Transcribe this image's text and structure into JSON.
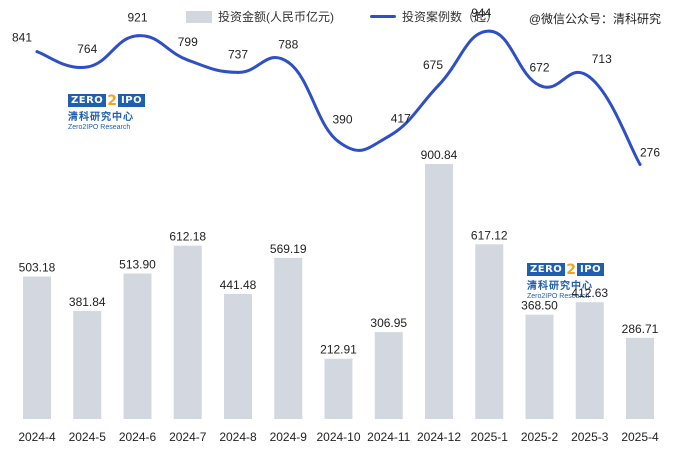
{
  "legend": {
    "bar_label": "投资金额(人民币亿元)",
    "line_label": "投资案例数（起）"
  },
  "source": "@微信公众号：清科研究",
  "logo": {
    "word_a": "ZERO",
    "digit": "2",
    "word_b": "IPO",
    "cn": "清科研究中心",
    "en": "Zero2IPO Research"
  },
  "colors": {
    "bar": "#d3d8e0",
    "line": "#2f4fc6"
  },
  "chart_data": {
    "type": "bar",
    "categories": [
      "2024-4",
      "2024-5",
      "2024-6",
      "2024-7",
      "2024-8",
      "2024-9",
      "2024-10",
      "2024-11",
      "2024-12",
      "2025-1",
      "2025-2",
      "2025-3",
      "2025-4"
    ],
    "series": [
      {
        "name": "投资金额(人民币亿元)",
        "type": "bar",
        "axis": "left",
        "values": [
          503.18,
          381.84,
          513.9,
          612.18,
          441.48,
          569.19,
          212.91,
          306.95,
          900.84,
          617.12,
          368.5,
          412.63,
          286.71
        ],
        "labels": [
          "503.18",
          "381.84",
          "513.90",
          "612.18",
          "441.48",
          "569.19",
          "212.91",
          "306.95",
          "900.84",
          "617.12",
          "368.50",
          "412.63",
          "286.71"
        ]
      },
      {
        "name": "投资案例数（起）",
        "type": "line",
        "axis": "right",
        "values": [
          841,
          764,
          921,
          799,
          737,
          788,
          390,
          417,
          675,
          944,
          672,
          713,
          276
        ],
        "labels": [
          "841",
          "764",
          "921",
          "799",
          "737",
          "788",
          "390",
          "417",
          "675",
          "944",
          "672",
          "713",
          "276"
        ]
      }
    ],
    "bar_axis_range": [
      0,
      1480
    ],
    "line_axis_range": [
      -1000,
      1100
    ],
    "grid": false,
    "legend_position": "top"
  }
}
